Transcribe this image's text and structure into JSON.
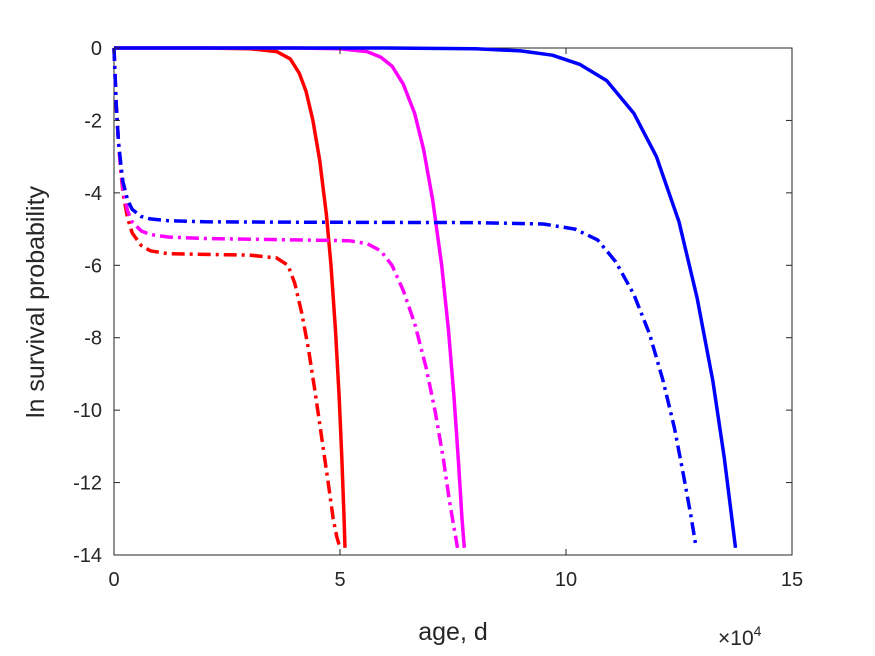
{
  "chart_data": {
    "type": "line",
    "title": "",
    "xlabel": "age, d",
    "ylabel": "ln survival probability",
    "x_multiplier": {
      "base": "10",
      "exponent": "4"
    },
    "xlim": [
      0,
      150000
    ],
    "ylim": [
      -14,
      0
    ],
    "x_ticks": [
      0,
      50000,
      100000,
      150000
    ],
    "x_tick_labels": [
      "0",
      "5",
      "10",
      "15"
    ],
    "y_ticks": [
      -14,
      -12,
      -10,
      -8,
      -6,
      -4,
      -2,
      0
    ],
    "y_tick_labels": [
      "-14",
      "-12",
      "-10",
      "-8",
      "-6",
      "-4",
      "-2",
      "0"
    ],
    "grid": false,
    "series": [
      {
        "color": "#ff0000",
        "style": "solid",
        "x": [
          0,
          20000,
          30000,
          36000,
          39000,
          41000,
          42500,
          44000,
          45500,
          47000,
          48000,
          49000,
          49800,
          50400,
          50900,
          51100
        ],
        "y": [
          0,
          0,
          -0.02,
          -0.1,
          -0.3,
          -0.7,
          -1.2,
          -2.0,
          -3.1,
          -4.6,
          -6.0,
          -7.8,
          -9.6,
          -11.3,
          -13.0,
          -13.8
        ]
      },
      {
        "color": "#ff00ff",
        "style": "solid",
        "x": [
          0,
          40000,
          50000,
          56000,
          59000,
          61500,
          64000,
          66500,
          68500,
          70500,
          72500,
          74000,
          75200,
          76200,
          77000,
          77500
        ],
        "y": [
          0,
          0,
          -0.02,
          -0.1,
          -0.25,
          -0.5,
          -1.0,
          -1.8,
          -2.8,
          -4.2,
          -6.0,
          -7.8,
          -9.6,
          -11.4,
          -13.0,
          -13.8
        ]
      },
      {
        "color": "#0000ff",
        "style": "solid",
        "x": [
          0,
          60000,
          80000,
          90000,
          97000,
          103000,
          109000,
          115000,
          120000,
          125000,
          129000,
          132500,
          135000,
          136500,
          137500
        ],
        "y": [
          0,
          0,
          -0.02,
          -0.08,
          -0.2,
          -0.45,
          -0.9,
          -1.8,
          -3.0,
          -4.8,
          -6.9,
          -9.2,
          -11.3,
          -12.8,
          -13.8
        ]
      },
      {
        "color": "#ff0000",
        "style": "dashdot",
        "x": [
          0,
          500,
          1000,
          1500,
          2000,
          3000,
          4000,
          6000,
          8000,
          12000,
          20000,
          30000,
          36000,
          38500,
          40000,
          41500,
          43000,
          44500,
          46000,
          47500,
          48500,
          49300,
          50000
        ],
        "y": [
          0,
          -1.6,
          -2.6,
          -3.4,
          -4.0,
          -4.7,
          -5.1,
          -5.45,
          -5.6,
          -5.68,
          -5.7,
          -5.72,
          -5.8,
          -6.0,
          -6.5,
          -7.3,
          -8.3,
          -9.5,
          -10.8,
          -12.1,
          -13.0,
          -13.5,
          -13.8
        ]
      },
      {
        "color": "#ff00ff",
        "style": "dashdot",
        "x": [
          0,
          500,
          1000,
          1500,
          2000,
          3000,
          4000,
          6000,
          8000,
          12000,
          20000,
          40000,
          52000,
          56000,
          59000,
          61500,
          64000,
          66500,
          69000,
          71000,
          72800,
          74200,
          75300,
          76000
        ],
        "y": [
          0,
          -1.6,
          -2.6,
          -3.3,
          -3.9,
          -4.5,
          -4.8,
          -5.05,
          -5.15,
          -5.22,
          -5.26,
          -5.3,
          -5.32,
          -5.4,
          -5.6,
          -6.0,
          -6.7,
          -7.6,
          -8.8,
          -10.0,
          -11.3,
          -12.5,
          -13.3,
          -13.8
        ]
      },
      {
        "color": "#0000ff",
        "style": "dashdot",
        "x": [
          0,
          500,
          1000,
          1500,
          2000,
          3000,
          4000,
          6000,
          8000,
          12000,
          20000,
          40000,
          80000,
          95000,
          102000,
          107000,
          111000,
          115000,
          118500,
          121500,
          124000,
          126000,
          127600,
          128800
        ],
        "y": [
          0,
          -1.6,
          -2.6,
          -3.2,
          -3.7,
          -4.2,
          -4.45,
          -4.65,
          -4.72,
          -4.77,
          -4.8,
          -4.81,
          -4.82,
          -4.86,
          -5.0,
          -5.3,
          -5.9,
          -6.8,
          -7.9,
          -9.2,
          -10.5,
          -11.8,
          -12.9,
          -13.8
        ]
      }
    ]
  }
}
